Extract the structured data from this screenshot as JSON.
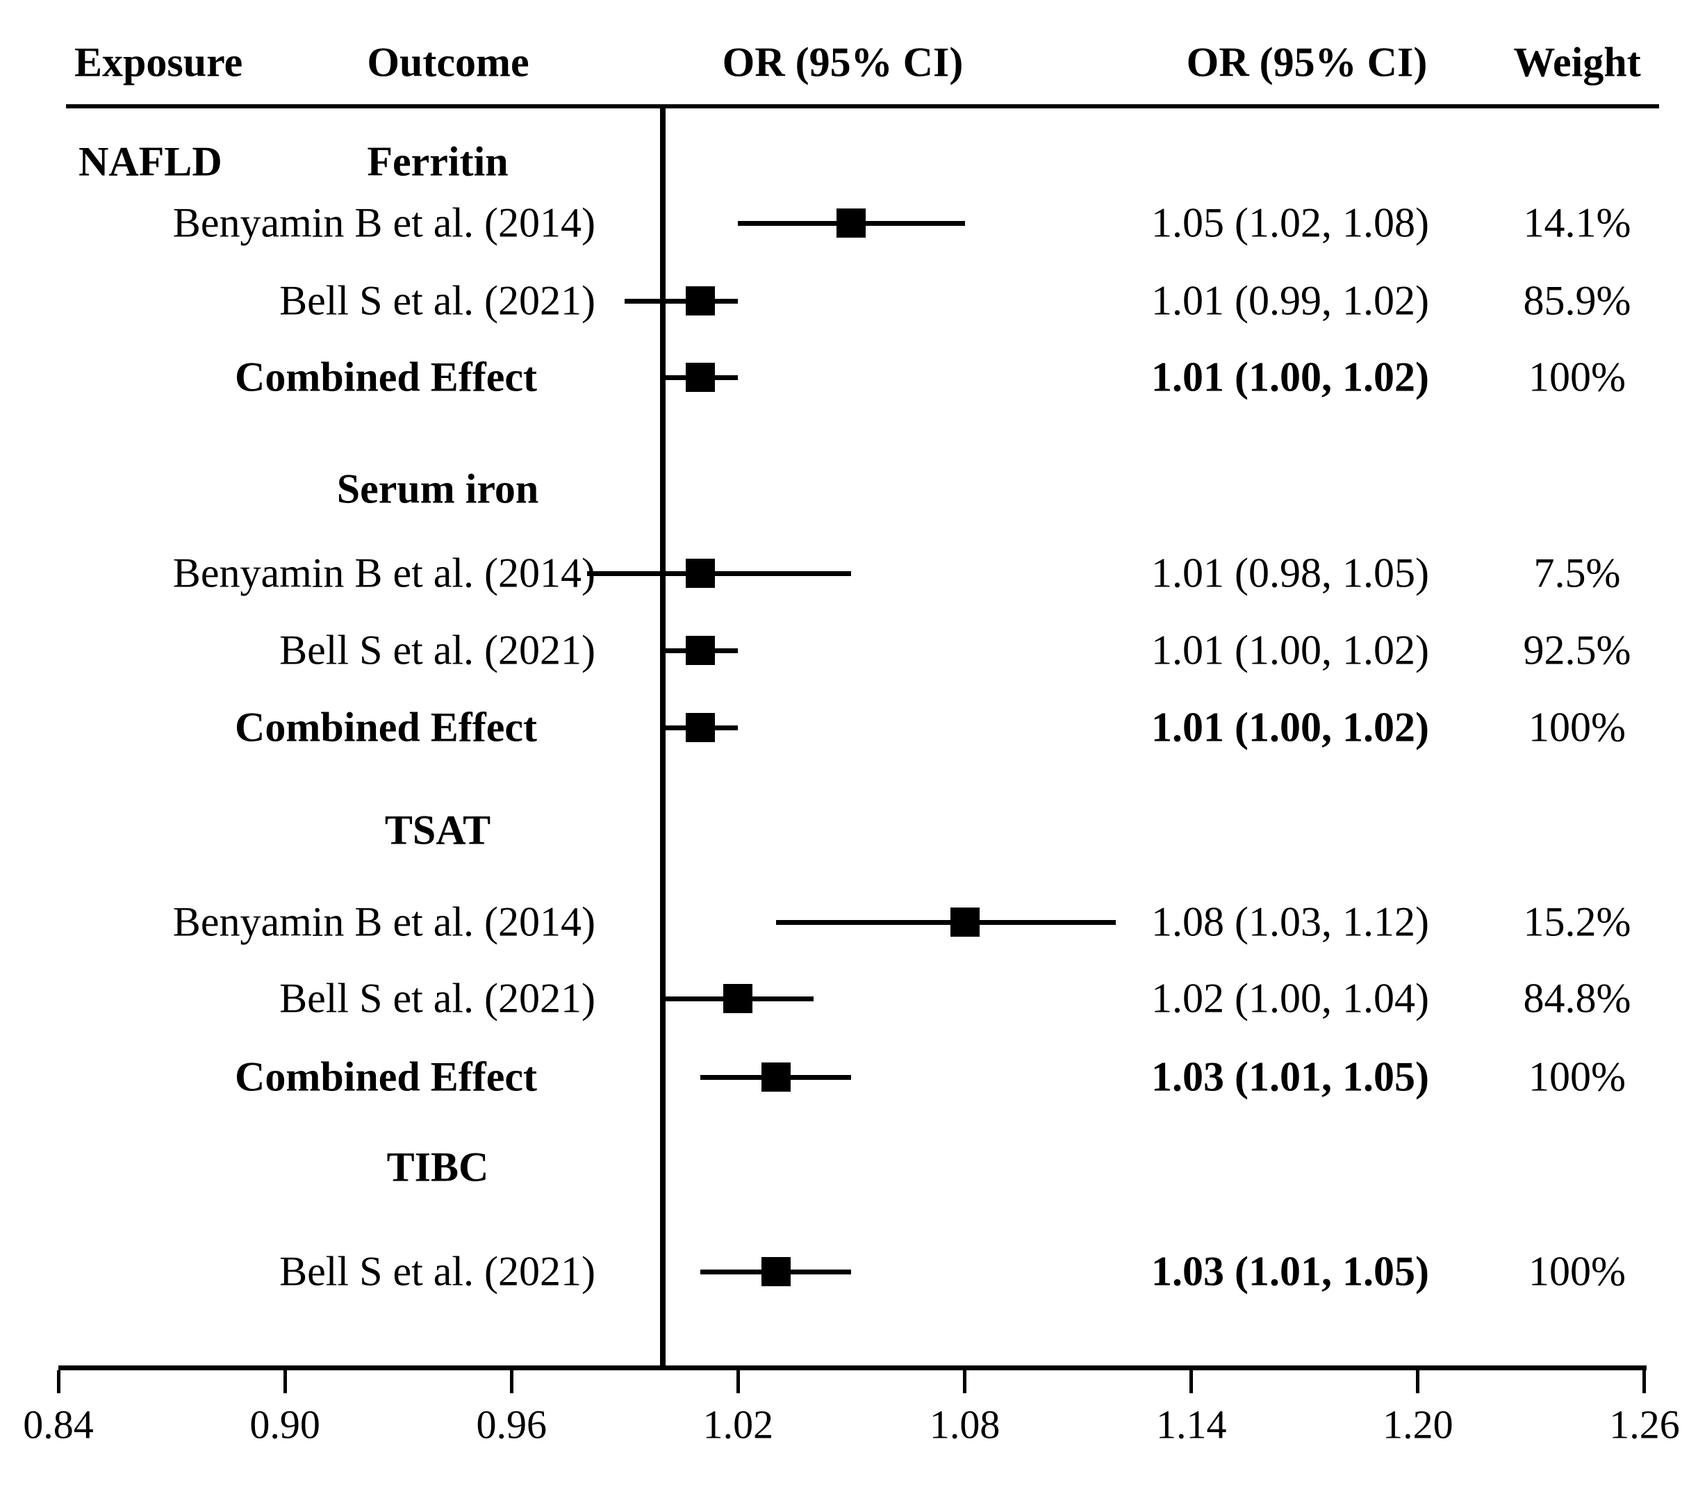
{
  "figure": {
    "columns": {
      "exposure": "Exposure",
      "outcome": "Outcome",
      "or_ci_plot": "OR (95% CI)",
      "or_ci_text": "OR (95% CI)",
      "weight": "Weight"
    },
    "exposure_group": "NAFLD"
  },
  "axis": {
    "min": 0.84,
    "max": 1.26,
    "ticks": [
      "0.84",
      "0.90",
      "0.96",
      "1.02",
      "1.08",
      "1.14",
      "1.20",
      "1.26"
    ],
    "reference_line": 1.0
  },
  "chart_data": {
    "type": "scatter",
    "subtype": "forest-plot",
    "title": "",
    "xlabel": "OR (95% CI)",
    "xlim": [
      0.84,
      1.26
    ],
    "x_ticks": [
      0.84,
      0.9,
      0.96,
      1.02,
      1.08,
      1.14,
      1.2,
      1.26
    ],
    "reference_line": 1.0,
    "exposure": "NAFLD",
    "sections": [
      {
        "outcome": "Ferritin",
        "rows": [
          {
            "study": "Benyamin B et al. (2014)",
            "or": 1.05,
            "ci_low": 1.02,
            "ci_high": 1.08,
            "or_text": "1.05 (1.02, 1.08)",
            "weight": "14.1%",
            "label_bold": false,
            "or_bold": false
          },
          {
            "study": "Bell S et al. (2021)",
            "or": 1.01,
            "ci_low": 0.99,
            "ci_high": 1.02,
            "or_text": "1.01 (0.99, 1.02)",
            "weight": "85.9%",
            "label_bold": false,
            "or_bold": false
          },
          {
            "study": "Combined Effect",
            "or": 1.01,
            "ci_low": 1.0,
            "ci_high": 1.02,
            "or_text": "1.01 (1.00, 1.02)",
            "weight": "100%",
            "label_bold": true,
            "or_bold": true
          }
        ]
      },
      {
        "outcome": "Serum iron",
        "rows": [
          {
            "study": "Benyamin B et al. (2014)",
            "or": 1.01,
            "ci_low": 0.98,
            "ci_high": 1.05,
            "or_text": "1.01 (0.98, 1.05)",
            "weight": "7.5%",
            "label_bold": false,
            "or_bold": false
          },
          {
            "study": "Bell S et al. (2021)",
            "or": 1.01,
            "ci_low": 1.0,
            "ci_high": 1.02,
            "or_text": "1.01 (1.00, 1.02)",
            "weight": "92.5%",
            "label_bold": false,
            "or_bold": false
          },
          {
            "study": "Combined Effect",
            "or": 1.01,
            "ci_low": 1.0,
            "ci_high": 1.02,
            "or_text": "1.01 (1.00, 1.02)",
            "weight": "100%",
            "label_bold": true,
            "or_bold": true
          }
        ]
      },
      {
        "outcome": "TSAT",
        "rows": [
          {
            "study": "Benyamin B et al. (2014)",
            "or": 1.08,
            "ci_low": 1.03,
            "ci_high": 1.12,
            "or_text": "1.08 (1.03, 1.12)",
            "weight": "15.2%",
            "label_bold": false,
            "or_bold": false
          },
          {
            "study": "Bell S et al. (2021)",
            "or": 1.02,
            "ci_low": 1.0,
            "ci_high": 1.04,
            "or_text": "1.02 (1.00, 1.04)",
            "weight": "84.8%",
            "label_bold": false,
            "or_bold": false
          },
          {
            "study": "Combined Effect",
            "or": 1.03,
            "ci_low": 1.01,
            "ci_high": 1.05,
            "or_text": "1.03 (1.01, 1.05)",
            "weight": "100%",
            "label_bold": true,
            "or_bold": true
          }
        ]
      },
      {
        "outcome": "TIBC",
        "rows": [
          {
            "study": "Bell S et al. (2021)",
            "or": 1.03,
            "ci_low": 1.01,
            "ci_high": 1.05,
            "or_text": "1.03 (1.01, 1.05)",
            "weight": "100%",
            "label_bold": false,
            "or_bold": true
          }
        ]
      }
    ]
  }
}
